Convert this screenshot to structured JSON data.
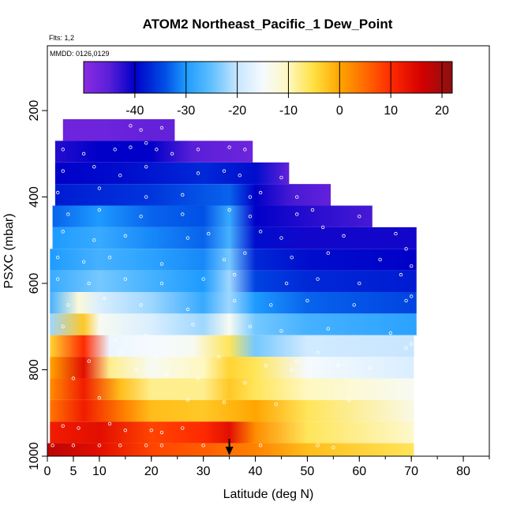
{
  "chart_data": {
    "type": "heatmap",
    "title": "ATOM2 Northeast_Pacific_1 Dew_Point",
    "subtitle_flights": "Flts: 1,2",
    "subtitle_dates": "MMDD: 0126,0129",
    "xlabel": "Latitude (deg N)",
    "ylabel": "PSXC (mbar)",
    "xlim": [
      0,
      85
    ],
    "ylim": [
      1000,
      50
    ],
    "y_reversed": true,
    "x_ticks": [
      0,
      5,
      10,
      20,
      30,
      40,
      50,
      60,
      70,
      80
    ],
    "y_ticks": [
      200,
      400,
      600,
      800,
      1000
    ],
    "grid": false,
    "marker_latitude": 35,
    "colorbar": {
      "placement": "top",
      "min": -50,
      "max": 22,
      "ticks": [
        -40,
        -30,
        -20,
        -10,
        0,
        10,
        20
      ],
      "stops": [
        {
          "v": -50,
          "color": "#8a2be2"
        },
        {
          "v": -45,
          "color": "#5a1fd8"
        },
        {
          "v": -40,
          "color": "#0000c8"
        },
        {
          "v": -34,
          "color": "#0050e6"
        },
        {
          "v": -30,
          "color": "#1e9bff"
        },
        {
          "v": -25,
          "color": "#60c0ff"
        },
        {
          "v": -20,
          "color": "#c8e6ff"
        },
        {
          "v": -15,
          "color": "#f5faff"
        },
        {
          "v": -10,
          "color": "#fff8c0"
        },
        {
          "v": -5,
          "color": "#ffe040"
        },
        {
          "v": 0,
          "color": "#ffa500"
        },
        {
          "v": 5,
          "color": "#ff6a00"
        },
        {
          "v": 10,
          "color": "#ff2a00"
        },
        {
          "v": 16,
          "color": "#d40000"
        },
        {
          "v": 22,
          "color": "#8b1010"
        }
      ]
    },
    "pressure_layers": [
      {
        "p_top": 220,
        "p_bot": 270,
        "lat_start": 3,
        "lat_end": 24.5,
        "values": [
          [
            3,
            -47
          ],
          [
            10,
            -47
          ],
          [
            20,
            -46
          ],
          [
            24.5,
            -46
          ]
        ]
      },
      {
        "p_top": 270,
        "p_bot": 320,
        "lat_start": 1.5,
        "lat_end": 39.5,
        "values": [
          [
            1.5,
            -42
          ],
          [
            10,
            -40
          ],
          [
            20,
            -40
          ],
          [
            28,
            -45
          ],
          [
            39.5,
            -47
          ]
        ]
      },
      {
        "p_top": 320,
        "p_bot": 370,
        "lat_start": 1.5,
        "lat_end": 46.5,
        "values": [
          [
            1.5,
            -40
          ],
          [
            15,
            -39
          ],
          [
            30,
            -37
          ],
          [
            40,
            -39
          ],
          [
            46.5,
            -46
          ]
        ]
      },
      {
        "p_top": 370,
        "p_bot": 420,
        "lat_start": 1.5,
        "lat_end": 54.5,
        "values": [
          [
            1.5,
            -38
          ],
          [
            20,
            -36
          ],
          [
            35,
            -33
          ],
          [
            40,
            -40
          ],
          [
            47,
            -44
          ],
          [
            54.5,
            -46
          ]
        ]
      },
      {
        "p_top": 420,
        "p_bot": 470,
        "lat_start": 1,
        "lat_end": 62.5,
        "values": [
          [
            1,
            -33
          ],
          [
            10,
            -30
          ],
          [
            20,
            -33
          ],
          [
            30,
            -34
          ],
          [
            35,
            -28
          ],
          [
            40,
            -40
          ],
          [
            50,
            -42
          ],
          [
            62.5,
            -44
          ]
        ]
      },
      {
        "p_top": 470,
        "p_bot": 520,
        "lat_start": 1,
        "lat_end": 71,
        "values": [
          [
            1,
            -30
          ],
          [
            10,
            -28
          ],
          [
            20,
            -31
          ],
          [
            30,
            -33
          ],
          [
            35,
            -27
          ],
          [
            40,
            -39
          ],
          [
            50,
            -41
          ],
          [
            71,
            -41
          ]
        ]
      },
      {
        "p_top": 520,
        "p_bot": 570,
        "lat_start": 0.5,
        "lat_end": 71,
        "values": [
          [
            0.5,
            -30
          ],
          [
            10,
            -27
          ],
          [
            20,
            -29
          ],
          [
            30,
            -31
          ],
          [
            35,
            -24
          ],
          [
            40,
            -37
          ],
          [
            50,
            -39
          ],
          [
            71,
            -40
          ]
        ]
      },
      {
        "p_top": 570,
        "p_bot": 620,
        "lat_start": 0.5,
        "lat_end": 71,
        "values": [
          [
            0.5,
            -28
          ],
          [
            10,
            -24
          ],
          [
            20,
            -27
          ],
          [
            30,
            -30
          ],
          [
            35,
            -22
          ],
          [
            40,
            -35
          ],
          [
            50,
            -37
          ],
          [
            71,
            -38
          ]
        ]
      },
      {
        "p_top": 620,
        "p_bot": 670,
        "lat_start": 0.5,
        "lat_end": 71,
        "values": [
          [
            0.5,
            -27
          ],
          [
            6,
            -12
          ],
          [
            10,
            -18
          ],
          [
            20,
            -22
          ],
          [
            30,
            -28
          ],
          [
            35,
            -22
          ],
          [
            40,
            -30
          ],
          [
            50,
            -33
          ],
          [
            71,
            -35
          ]
        ]
      },
      {
        "p_top": 670,
        "p_bot": 720,
        "lat_start": 0.5,
        "lat_end": 71,
        "values": [
          [
            0.5,
            -22
          ],
          [
            7,
            -3
          ],
          [
            10,
            -14
          ],
          [
            20,
            -18
          ],
          [
            30,
            -22
          ],
          [
            35,
            -14
          ],
          [
            40,
            -24
          ],
          [
            50,
            -27
          ],
          [
            71,
            -29
          ]
        ]
      },
      {
        "p_top": 720,
        "p_bot": 770,
        "lat_start": 0.5,
        "lat_end": 70.5,
        "values": [
          [
            0.5,
            -4
          ],
          [
            7,
            10
          ],
          [
            12,
            -16
          ],
          [
            20,
            -15
          ],
          [
            28,
            -14
          ],
          [
            35,
            -6
          ],
          [
            40,
            -24
          ],
          [
            50,
            -19
          ],
          [
            71,
            -20
          ]
        ]
      },
      {
        "p_top": 770,
        "p_bot": 820,
        "lat_start": 0.5,
        "lat_end": 70.5,
        "values": [
          [
            0.5,
            0
          ],
          [
            7,
            14
          ],
          [
            12,
            -8
          ],
          [
            20,
            -14
          ],
          [
            30,
            -10
          ],
          [
            35,
            -4
          ],
          [
            40,
            -6
          ],
          [
            50,
            -15
          ],
          [
            71,
            -18
          ]
        ]
      },
      {
        "p_top": 820,
        "p_bot": 870,
        "lat_start": 0.5,
        "lat_end": 70.5,
        "values": [
          [
            0.5,
            2
          ],
          [
            7,
            12
          ],
          [
            14,
            -2
          ],
          [
            20,
            -8
          ],
          [
            30,
            -8
          ],
          [
            35,
            -3
          ],
          [
            40,
            -6
          ],
          [
            50,
            -10
          ],
          [
            71,
            -14
          ]
        ]
      },
      {
        "p_top": 870,
        "p_bot": 920,
        "lat_start": 0.5,
        "lat_end": 70.5,
        "values": [
          [
            0.5,
            4
          ],
          [
            7,
            12
          ],
          [
            15,
            3
          ],
          [
            20,
            -2
          ],
          [
            30,
            -3
          ],
          [
            40,
            0
          ],
          [
            50,
            -6
          ],
          [
            71,
            -13
          ]
        ]
      },
      {
        "p_top": 920,
        "p_bot": 970,
        "lat_start": 0.5,
        "lat_end": 70.5,
        "values": [
          [
            0.5,
            12
          ],
          [
            10,
            14
          ],
          [
            20,
            8
          ],
          [
            30,
            10
          ],
          [
            35,
            14
          ],
          [
            40,
            2
          ],
          [
            50,
            -6
          ],
          [
            71,
            -11
          ]
        ]
      },
      {
        "p_top": 970,
        "p_bot": 1010,
        "lat_start": 0,
        "lat_end": 70.5,
        "values": [
          [
            0,
            18
          ],
          [
            10,
            14
          ],
          [
            20,
            8
          ],
          [
            30,
            6
          ],
          [
            40,
            3
          ],
          [
            50,
            -2
          ],
          [
            71,
            -6
          ]
        ]
      }
    ],
    "points": [
      [
        1,
        975
      ],
      [
        5,
        975
      ],
      [
        10,
        975
      ],
      [
        14,
        975
      ],
      [
        19,
        975
      ],
      [
        22,
        975
      ],
      [
        30,
        975
      ],
      [
        41,
        975
      ],
      [
        52,
        975
      ],
      [
        55,
        980
      ],
      [
        3,
        930
      ],
      [
        6,
        935
      ],
      [
        12,
        925
      ],
      [
        15,
        940
      ],
      [
        20,
        940
      ],
      [
        26,
        935
      ],
      [
        22,
        945
      ],
      [
        10,
        865
      ],
      [
        27,
        870
      ],
      [
        34,
        875
      ],
      [
        44,
        880
      ],
      [
        58,
        870
      ],
      [
        5,
        820
      ],
      [
        17,
        800
      ],
      [
        23,
        810
      ],
      [
        29,
        820
      ],
      [
        38,
        830
      ],
      [
        42,
        790
      ],
      [
        47,
        800
      ],
      [
        56,
        790
      ],
      [
        62,
        795
      ],
      [
        8,
        780
      ],
      [
        14,
        760
      ],
      [
        21,
        770
      ],
      [
        33,
        770
      ],
      [
        48,
        780
      ],
      [
        52,
        760
      ],
      [
        69,
        750
      ],
      [
        70,
        740
      ],
      [
        3,
        700
      ],
      [
        13,
        730
      ],
      [
        19,
        720
      ],
      [
        28,
        695
      ],
      [
        39,
        700
      ],
      [
        45,
        710
      ],
      [
        54,
        705
      ],
      [
        66,
        715
      ],
      [
        4,
        650
      ],
      [
        11,
        635
      ],
      [
        18,
        650
      ],
      [
        27,
        660
      ],
      [
        36,
        640
      ],
      [
        43,
        650
      ],
      [
        50,
        640
      ],
      [
        59,
        650
      ],
      [
        69,
        640
      ],
      [
        70,
        630
      ],
      [
        2,
        590
      ],
      [
        8,
        600
      ],
      [
        15,
        590
      ],
      [
        22,
        600
      ],
      [
        30,
        590
      ],
      [
        36,
        580
      ],
      [
        46,
        600
      ],
      [
        52,
        590
      ],
      [
        60,
        600
      ],
      [
        68,
        580
      ],
      [
        70,
        560
      ],
      [
        2,
        540
      ],
      [
        7,
        550
      ],
      [
        12,
        540
      ],
      [
        22,
        555
      ],
      [
        34,
        545
      ],
      [
        38,
        530
      ],
      [
        47,
        540
      ],
      [
        54,
        530
      ],
      [
        64,
        545
      ],
      [
        69,
        520
      ],
      [
        3,
        480
      ],
      [
        9,
        500
      ],
      [
        15,
        490
      ],
      [
        27,
        495
      ],
      [
        31,
        485
      ],
      [
        41,
        480
      ],
      [
        45,
        495
      ],
      [
        53,
        470
      ],
      [
        57,
        490
      ],
      [
        67,
        485
      ],
      [
        4,
        440
      ],
      [
        10,
        430
      ],
      [
        18,
        445
      ],
      [
        26,
        440
      ],
      [
        35,
        430
      ],
      [
        39,
        445
      ],
      [
        48,
        440
      ],
      [
        51,
        430
      ],
      [
        60,
        445
      ],
      [
        2,
        390
      ],
      [
        10,
        380
      ],
      [
        19,
        400
      ],
      [
        26,
        395
      ],
      [
        39,
        400
      ],
      [
        41,
        390
      ],
      [
        48,
        400
      ],
      [
        3,
        340
      ],
      [
        9,
        330
      ],
      [
        14,
        350
      ],
      [
        19,
        330
      ],
      [
        29,
        345
      ],
      [
        34,
        340
      ],
      [
        37,
        350
      ],
      [
        45,
        355
      ],
      [
        3,
        290
      ],
      [
        7,
        300
      ],
      [
        13,
        290
      ],
      [
        16,
        285
      ],
      [
        19,
        275
      ],
      [
        21,
        290
      ],
      [
        24,
        300
      ],
      [
        29,
        290
      ],
      [
        35,
        285
      ],
      [
        38,
        290
      ],
      [
        16,
        235
      ],
      [
        18,
        245
      ],
      [
        22,
        240
      ]
    ]
  }
}
